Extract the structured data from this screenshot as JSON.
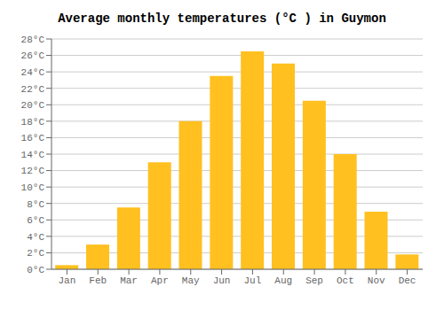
{
  "chart_data": {
    "type": "bar",
    "title": "Average monthly temperatures (°C ) in Guymon",
    "categories": [
      "Jan",
      "Feb",
      "Mar",
      "Apr",
      "May",
      "Jun",
      "Jul",
      "Aug",
      "Sep",
      "Oct",
      "Nov",
      "Dec"
    ],
    "values": [
      0.5,
      3.0,
      7.5,
      13.0,
      18.0,
      23.5,
      26.5,
      25.0,
      20.5,
      14.0,
      7.0,
      1.8
    ],
    "color": "#FFC020",
    "ylim": [
      0,
      28
    ],
    "yticks": [
      {
        "value": 0,
        "label": "0°C"
      },
      {
        "value": 2,
        "label": "2°C"
      },
      {
        "value": 4,
        "label": "4°C"
      },
      {
        "value": 6,
        "label": "6°C"
      },
      {
        "value": 8,
        "label": "8°C"
      },
      {
        "value": 10,
        "label": "10°C"
      },
      {
        "value": 12,
        "label": "12°C"
      },
      {
        "value": 14,
        "label": "14°C"
      },
      {
        "value": 16,
        "label": "16°C"
      },
      {
        "value": 18,
        "label": "18°C"
      },
      {
        "value": 20,
        "label": "20°C"
      },
      {
        "value": 22,
        "label": "22°C"
      },
      {
        "value": 24,
        "label": "24°C"
      },
      {
        "value": 26,
        "label": "26°C"
      },
      {
        "value": 28,
        "label": "28°C"
      }
    ],
    "grid": true
  }
}
